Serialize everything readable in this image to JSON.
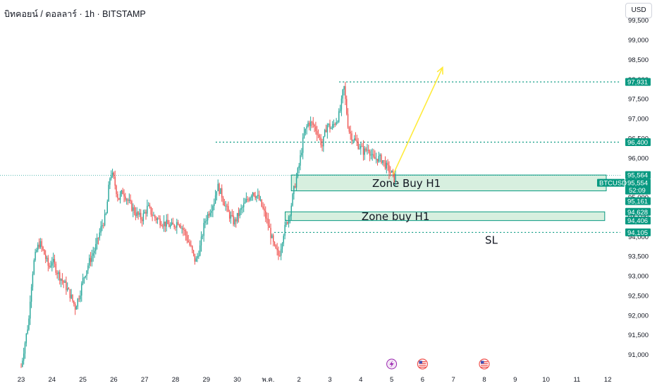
{
  "header": {
    "title": "บิทคอยน์ / ดอลลาร์ · 1h · BITSTAMP",
    "currency": "USD"
  },
  "colors": {
    "up": "#26a69a",
    "down": "#ef5350",
    "level_line": "#089981",
    "zone_fill": "#b7e1c5",
    "zone_border": "#089981",
    "arrow": "#ffeb3b",
    "live_line": "#26a69a"
  },
  "chart_data": {
    "type": "candlestick",
    "symbol": "BTCUSD",
    "timeframe": "1h",
    "x_ticks": [
      "23",
      "24",
      "25",
      "26",
      "27",
      "28",
      "29",
      "30",
      "พ.ค.",
      "2",
      "3",
      "4",
      "5",
      "6",
      "7",
      "8",
      "9",
      "10",
      "11",
      "12"
    ],
    "y_ticks": [
      91000,
      91500,
      92000,
      92500,
      93000,
      93500,
      94000,
      94500,
      95000,
      95500,
      96000,
      96500,
      97000,
      97500,
      98000,
      98500,
      99000,
      99500
    ],
    "ylim": [
      90750,
      99750
    ],
    "grid": false,
    "price_path": [
      [
        0,
        90680
      ],
      [
        0.08,
        91100
      ],
      [
        0.2,
        91650
      ],
      [
        0.25,
        91900
      ],
      [
        0.3,
        92550
      ],
      [
        0.4,
        93300
      ],
      [
        0.5,
        93650
      ],
      [
        0.6,
        93850
      ],
      [
        0.75,
        93550
      ],
      [
        0.9,
        93200
      ],
      [
        1.0,
        93400
      ],
      [
        1.2,
        93050
      ],
      [
        1.4,
        92800
      ],
      [
        1.6,
        92500
      ],
      [
        1.75,
        92200
      ],
      [
        1.9,
        92550
      ],
      [
        2.0,
        92900
      ],
      [
        2.2,
        93350
      ],
      [
        2.4,
        93700
      ],
      [
        2.6,
        94250
      ],
      [
        2.75,
        94550
      ],
      [
        2.85,
        95350
      ],
      [
        2.9,
        95650
      ],
      [
        3.0,
        95450
      ],
      [
        3.15,
        94950
      ],
      [
        3.3,
        95150
      ],
      [
        3.5,
        94850
      ],
      [
        3.7,
        94600
      ],
      [
        3.9,
        94450
      ],
      [
        4.1,
        94750
      ],
      [
        4.3,
        94500
      ],
      [
        4.6,
        94350
      ],
      [
        4.9,
        94250
      ],
      [
        5.1,
        94400
      ],
      [
        5.3,
        94100
      ],
      [
        5.5,
        93700
      ],
      [
        5.65,
        93350
      ],
      [
        5.8,
        93750
      ],
      [
        5.95,
        94400
      ],
      [
        6.1,
        94650
      ],
      [
        6.25,
        94900
      ],
      [
        6.35,
        95300
      ],
      [
        6.5,
        95050
      ],
      [
        6.7,
        94600
      ],
      [
        6.9,
        94350
      ],
      [
        7.1,
        94650
      ],
      [
        7.3,
        94900
      ],
      [
        7.5,
        95150
      ],
      [
        7.7,
        94950
      ],
      [
        7.85,
        94650
      ],
      [
        8.0,
        94300
      ],
      [
        8.2,
        93700
      ],
      [
        8.35,
        93500
      ],
      [
        8.5,
        94100
      ],
      [
        8.7,
        94600
      ],
      [
        8.85,
        95250
      ],
      [
        9.0,
        95800
      ],
      [
        9.15,
        96550
      ],
      [
        9.3,
        96900
      ],
      [
        9.45,
        96850
      ],
      [
        9.6,
        96650
      ],
      [
        9.75,
        96300
      ],
      [
        9.9,
        96850
      ],
      [
        10.05,
        96750
      ],
      [
        10.2,
        96950
      ],
      [
        10.3,
        97100
      ],
      [
        10.38,
        97420
      ],
      [
        10.45,
        97850
      ],
      [
        10.52,
        97300
      ],
      [
        10.6,
        96750
      ],
      [
        10.7,
        96550
      ],
      [
        10.8,
        96450
      ],
      [
        10.95,
        96300
      ],
      [
        11.1,
        96150
      ],
      [
        11.25,
        96250
      ],
      [
        11.4,
        95950
      ],
      [
        11.55,
        96000
      ],
      [
        11.7,
        95950
      ],
      [
        11.85,
        95750
      ],
      [
        12.0,
        95600
      ],
      [
        12.08,
        95480
      ],
      [
        12.15,
        95550
      ]
    ],
    "extremes": {
      "high": 97931,
      "low": 90680
    },
    "levels": [
      97931,
      96400,
      94105
    ],
    "zones": [
      {
        "label": "Zone Buy H1",
        "top": 95564,
        "bottom": 95161,
        "x_start": 8.75,
        "x_end": 18.95
      },
      {
        "label": "Zone buy H1",
        "top": 94628,
        "bottom": 94406,
        "x_start": 8.55,
        "x_end": 18.9
      }
    ],
    "sl_label": "SL",
    "arrow": {
      "from": [
        12.05,
        95580
      ],
      "to": [
        13.65,
        98300
      ]
    },
    "price_tags": [
      {
        "value": "97,931",
        "price": 97931
      },
      {
        "value": "96,400",
        "price": 96400
      },
      {
        "value": "95,564",
        "price": 95564
      },
      {
        "value": "95,554",
        "price": 95554,
        "symbol": "BTCUSD",
        "countdown": "52:09"
      },
      {
        "value": "95,161",
        "price": 95161
      },
      {
        "value": "94,628",
        "price": 94628
      },
      {
        "value": "94,406",
        "price": 94406
      },
      {
        "value": "94,105",
        "price": 94105
      }
    ],
    "events": [
      {
        "icon": "lightning-icon",
        "day": 12.0
      },
      {
        "icon": "us-flag-icon",
        "day": 13.0
      },
      {
        "icon": "us-flag-icon",
        "day": 15.0
      }
    ]
  }
}
